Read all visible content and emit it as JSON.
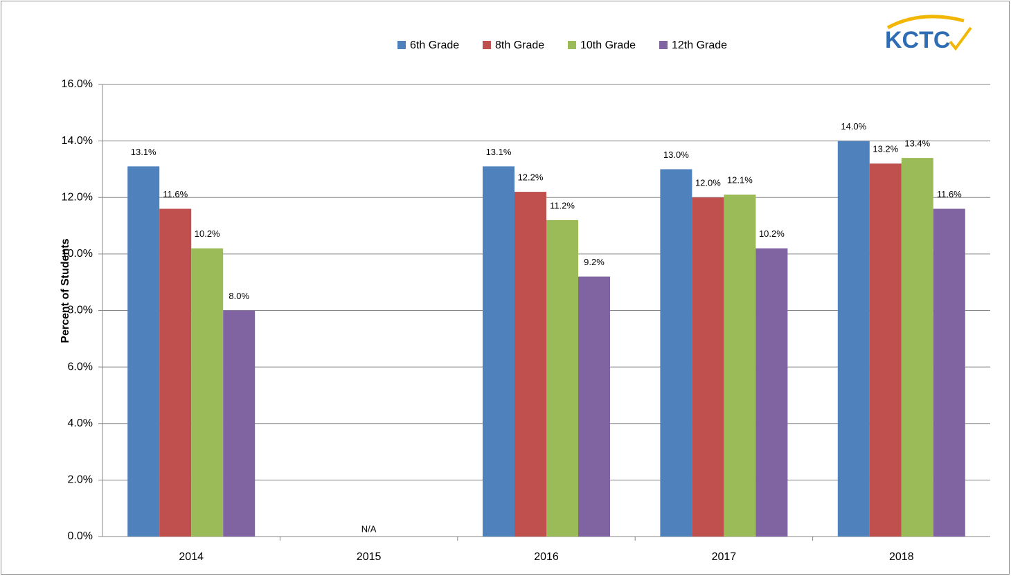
{
  "chart_data": {
    "type": "bar",
    "logo": "KCTC",
    "y_label": "Percent of Students",
    "categories": [
      "2014",
      "2015",
      "2016",
      "2017",
      "2018"
    ],
    "series": [
      {
        "name": "6th Grade",
        "color": "#4f81bd",
        "values": [
          13.1,
          null,
          13.1,
          13.0,
          14.0
        ],
        "value_labels": [
          "13.1%",
          null,
          "13.1%",
          "13.0%",
          "14.0%"
        ]
      },
      {
        "name": "8th Grade",
        "color": "#c0504d",
        "values": [
          11.6,
          null,
          12.2,
          12.0,
          13.2
        ],
        "value_labels": [
          "11.6%",
          null,
          "12.2%",
          "12.0%",
          "13.2%"
        ]
      },
      {
        "name": "10th Grade",
        "color": "#9bbb59",
        "values": [
          10.2,
          null,
          11.2,
          12.1,
          13.4
        ],
        "value_labels": [
          "10.2%",
          null,
          "11.2%",
          "12.1%",
          "13.4%"
        ]
      },
      {
        "name": "12th Grade",
        "color": "#8064a2",
        "values": [
          8.0,
          null,
          9.2,
          10.2,
          11.6
        ],
        "value_labels": [
          "8.0%",
          null,
          "9.2%",
          "10.2%",
          "11.6%"
        ]
      }
    ],
    "annotation": "N/A",
    "ylim": [
      0,
      16
    ],
    "yticks": [
      {
        "value": 0,
        "label": "0.0%"
      },
      {
        "value": 2,
        "label": "2.0%"
      },
      {
        "value": 4,
        "label": "4.0%"
      },
      {
        "value": 6,
        "label": "6.0%"
      },
      {
        "value": 8,
        "label": "8.0%"
      },
      {
        "value": 10,
        "label": "10.0%"
      },
      {
        "value": 12,
        "label": "12.0%"
      },
      {
        "value": 14,
        "label": "14.0%"
      },
      {
        "value": 16,
        "label": "16.0%"
      }
    ],
    "grid": true,
    "legend": "top"
  }
}
